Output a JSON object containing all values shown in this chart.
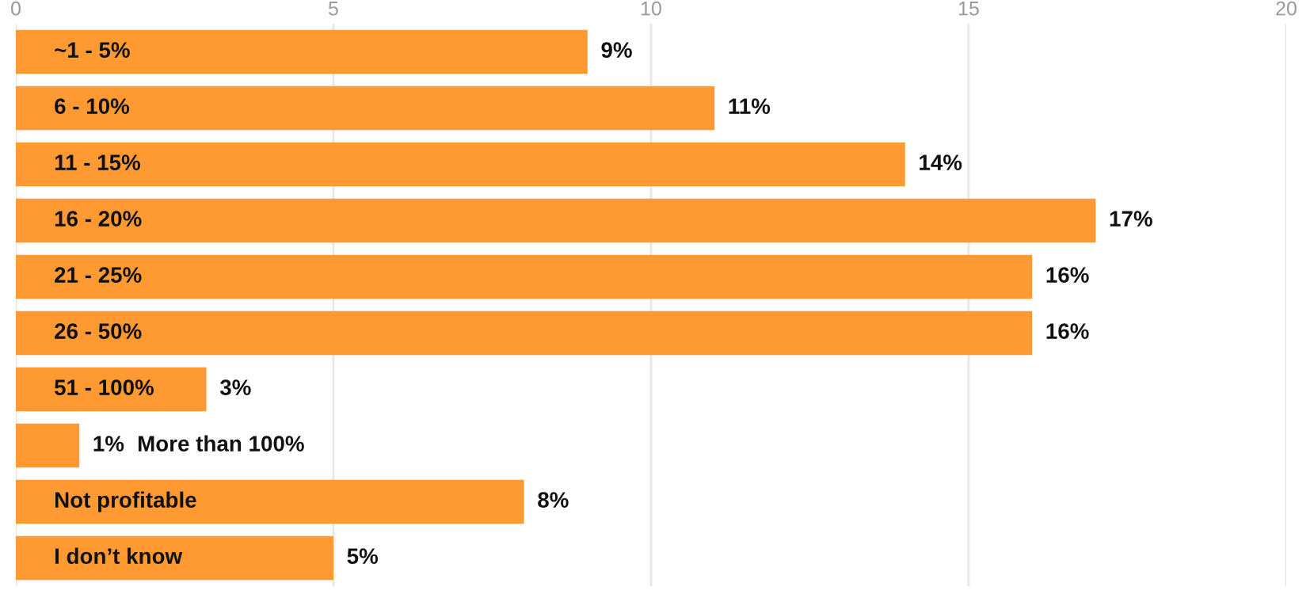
{
  "chart_data": {
    "type": "bar",
    "orientation": "horizontal",
    "categories": [
      "~1 - 5%",
      "6 - 10%",
      "11 - 15%",
      "16 - 20%",
      "21 - 25%",
      "26 - 50%",
      "51 - 100%",
      "More than 100%",
      "Not profitable",
      "I don’t know"
    ],
    "values": [
      9,
      11,
      14,
      17,
      16,
      16,
      3,
      1,
      8,
      5
    ],
    "value_labels": [
      "9%",
      "11%",
      "14%",
      "17%",
      "16%",
      "16%",
      "3%",
      "1%",
      "8%",
      "5%"
    ],
    "color": "#ff9a33",
    "xlim": [
      0,
      20
    ],
    "xticks": [
      0,
      5,
      10,
      15,
      20
    ],
    "grid": "x"
  }
}
